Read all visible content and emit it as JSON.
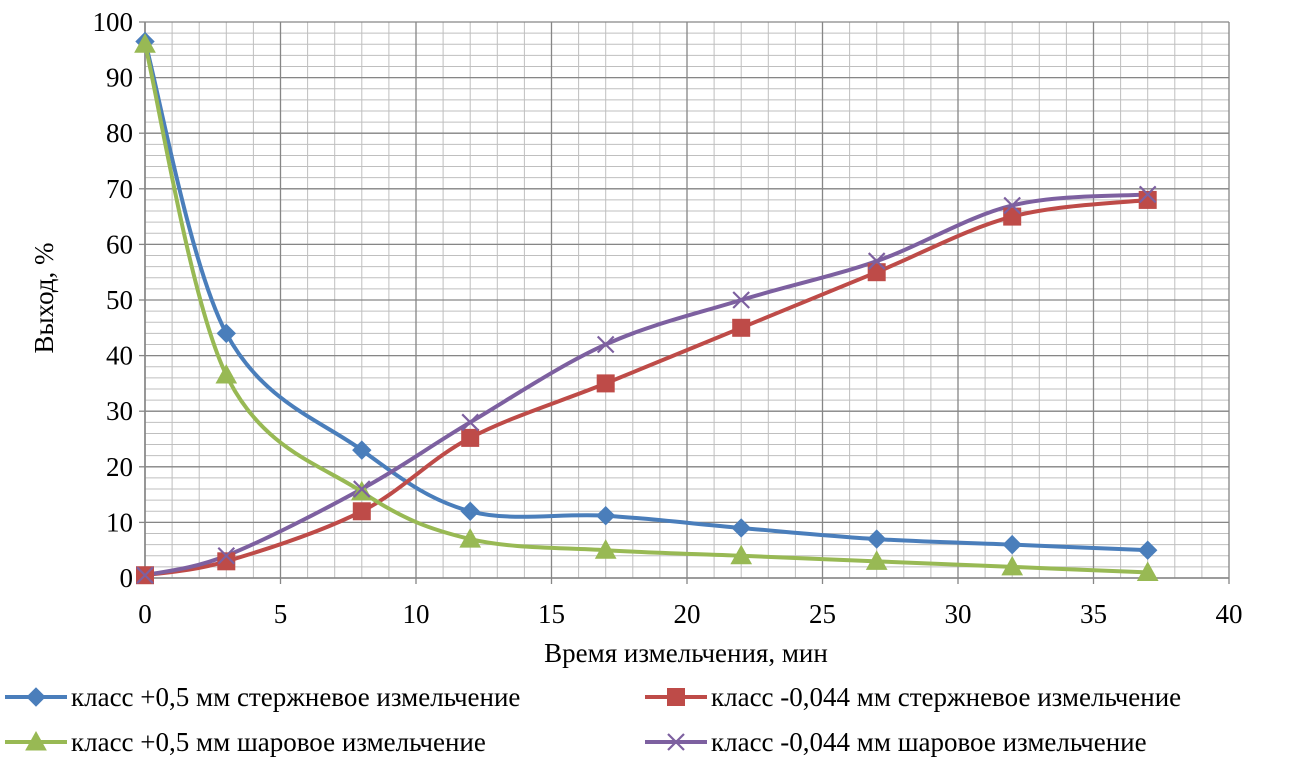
{
  "chart_data": {
    "type": "line",
    "xlabel": "Время измельчения, мин",
    "ylabel": "Выход, %",
    "xlim": [
      0,
      40
    ],
    "ylim": [
      0,
      100
    ],
    "x_ticks": [
      0,
      5,
      10,
      15,
      20,
      25,
      30,
      35,
      40
    ],
    "y_ticks": [
      0,
      10,
      20,
      30,
      40,
      50,
      60,
      70,
      80,
      90,
      100
    ],
    "x_minor_step": 1,
    "y_minor_step": 2,
    "grid": true,
    "legend_position": "bottom",
    "x": [
      0,
      3,
      8,
      12,
      17,
      22,
      27,
      32,
      37
    ],
    "series": [
      {
        "name": "класс +0,5 мм стержневое измельчение",
        "color": "#4A7EBB",
        "marker": "diamond",
        "values": [
          96.5,
          44,
          23,
          12,
          11.2,
          9,
          7,
          6,
          5
        ]
      },
      {
        "name": "класс -0,044 мм стержневое измельчение",
        "color": "#BE4B48",
        "marker": "square",
        "values": [
          0.5,
          3,
          12,
          25.2,
          35,
          45,
          55,
          65,
          68
        ]
      },
      {
        "name": "класс +0,5 мм шаровое измельчение",
        "color": "#98B954",
        "marker": "triangle",
        "values": [
          96,
          36.5,
          15.5,
          7,
          5,
          4,
          3,
          2,
          1
        ]
      },
      {
        "name": "класс -0,044 мм шаровое измельчение",
        "color": "#7D60A0",
        "marker": "x",
        "values": [
          0.5,
          4,
          16,
          28,
          42,
          50,
          57,
          67,
          69
        ]
      }
    ]
  }
}
